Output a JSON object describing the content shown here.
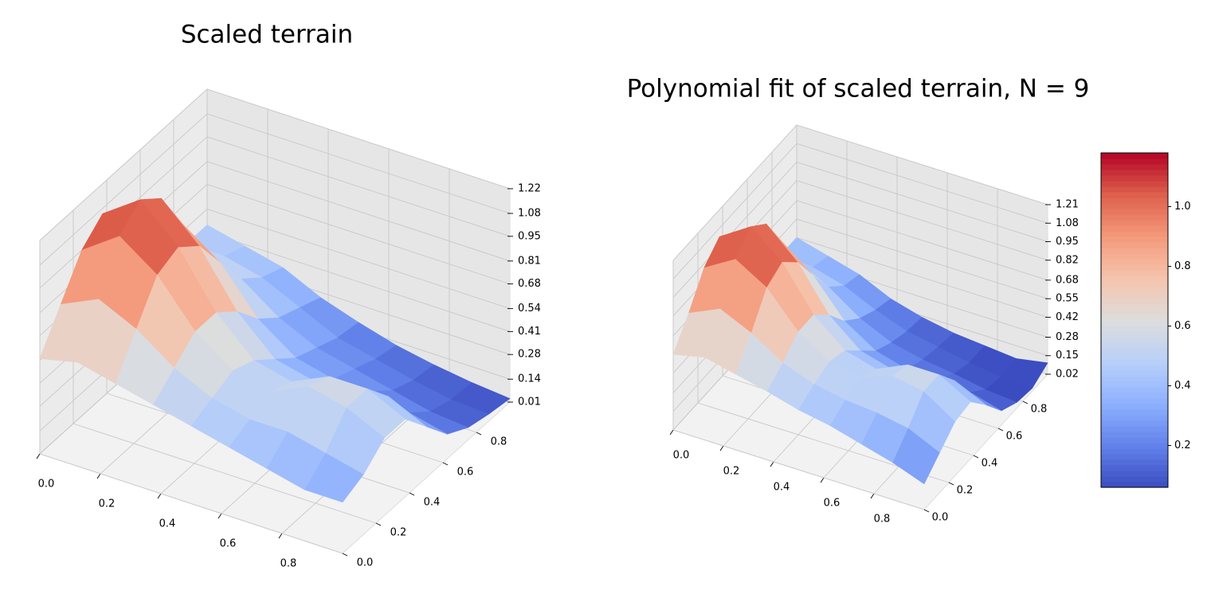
{
  "chart_data": [
    {
      "type": "surface",
      "title": "Scaled terrain",
      "x": [
        0,
        0.125,
        0.25,
        0.375,
        0.5,
        0.625,
        0.75,
        0.875,
        1
      ],
      "y": [
        0,
        0.125,
        0.25,
        0.375,
        0.5,
        0.625,
        0.75,
        0.875,
        1
      ],
      "z": [
        [
          0.55,
          0.75,
          0.95,
          1.05,
          0.95,
          0.75,
          0.55,
          0.45,
          0.45
        ],
        [
          0.6,
          0.85,
          1.1,
          1.2,
          1.1,
          0.85,
          0.6,
          0.45,
          0.4
        ],
        [
          0.55,
          0.75,
          0.95,
          1.0,
          0.9,
          0.7,
          0.5,
          0.4,
          0.35
        ],
        [
          0.5,
          0.6,
          0.7,
          0.7,
          0.6,
          0.45,
          0.35,
          0.3,
          0.25
        ],
        [
          0.45,
          0.5,
          0.55,
          0.5,
          0.4,
          0.3,
          0.25,
          0.2,
          0.18
        ],
        [
          0.4,
          0.45,
          0.5,
          0.45,
          0.35,
          0.25,
          0.2,
          0.15,
          0.12
        ],
        [
          0.35,
          0.45,
          0.6,
          0.55,
          0.4,
          0.25,
          0.15,
          0.1,
          0.08
        ],
        [
          0.3,
          0.4,
          0.55,
          0.55,
          0.4,
          0.2,
          0.1,
          0.06,
          0.05
        ],
        [
          0.3,
          0.35,
          0.45,
          0.45,
          0.3,
          0.15,
          0.08,
          0.05,
          0.03
        ]
      ],
      "colormap": "coolwarm",
      "clim": [
        0.01,
        1.22
      ],
      "xlim": [
        0,
        1
      ],
      "ylim": [
        0,
        1
      ],
      "zlim": [
        0.01,
        1.22
      ],
      "xticks": [
        {
          "value": 0,
          "label": "0.0"
        },
        0.2,
        0.4,
        0.6,
        0.8
      ],
      "yticks": [
        {
          "value": 0,
          "label": "0.0"
        },
        0.2,
        0.4,
        0.6,
        0.8
      ],
      "zticks": [
        0.01,
        0.14,
        0.28,
        0.41,
        0.54,
        0.68,
        0.81,
        0.95,
        1.08,
        1.22
      ],
      "grid": true
    },
    {
      "type": "surface",
      "title": "Polynomial fit of scaled terrain, N = 9",
      "x": [
        0,
        0.125,
        0.25,
        0.375,
        0.5,
        0.625,
        0.75,
        0.875,
        1
      ],
      "y": [
        0,
        0.125,
        0.25,
        0.375,
        0.5,
        0.625,
        0.75,
        0.875,
        1
      ],
      "z": [
        [
          0.55,
          0.72,
          0.92,
          1.02,
          0.93,
          0.72,
          0.52,
          0.42,
          0.42
        ],
        [
          0.6,
          0.82,
          1.05,
          1.16,
          1.06,
          0.82,
          0.56,
          0.4,
          0.36
        ],
        [
          0.55,
          0.72,
          0.92,
          0.98,
          0.86,
          0.65,
          0.45,
          0.34,
          0.3
        ],
        [
          0.5,
          0.58,
          0.68,
          0.68,
          0.56,
          0.4,
          0.3,
          0.24,
          0.2
        ],
        [
          0.44,
          0.5,
          0.54,
          0.5,
          0.38,
          0.26,
          0.2,
          0.16,
          0.14
        ],
        [
          0.4,
          0.46,
          0.5,
          0.44,
          0.32,
          0.2,
          0.15,
          0.12,
          0.1
        ],
        [
          0.34,
          0.44,
          0.58,
          0.54,
          0.38,
          0.2,
          0.12,
          0.08,
          0.08
        ],
        [
          0.28,
          0.4,
          0.54,
          0.54,
          0.38,
          0.18,
          0.08,
          0.05,
          0.06
        ],
        [
          0.2,
          0.3,
          0.4,
          0.42,
          0.28,
          0.12,
          0.06,
          0.04,
          0.1
        ]
      ],
      "colormap": "coolwarm",
      "clim": [
        0.06,
        1.18
      ],
      "xlim": [
        0,
        1
      ],
      "ylim": [
        0,
        1
      ],
      "zlim": [
        0.02,
        1.21
      ],
      "xticks": [
        {
          "value": 0,
          "label": "0.0"
        },
        0.2,
        0.4,
        0.6,
        0.8
      ],
      "yticks": [
        {
          "value": 0,
          "label": "0.0"
        },
        0.2,
        0.4,
        0.6,
        0.8
      ],
      "zticks": [
        0.02,
        0.15,
        0.28,
        0.42,
        0.55,
        0.68,
        0.82,
        0.95,
        1.08,
        1.21
      ],
      "colorbar_ticks": [
        0.2,
        0.4,
        0.6,
        0.8,
        {
          "value": 1,
          "label": "1.0"
        }
      ],
      "grid": true
    }
  ]
}
